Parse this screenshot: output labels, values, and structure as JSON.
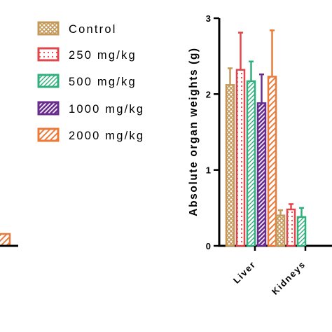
{
  "chart_data": {
    "type": "bar",
    "ylabel": "Absolute organ weights (g)",
    "ylim": [
      0,
      3
    ],
    "y_ticks": [
      0,
      1,
      2,
      3
    ],
    "y_tick_labels": [
      "0",
      "1",
      "2",
      "3"
    ],
    "categories": [
      "Liver",
      "Kidneys"
    ],
    "legend_placement": "top-left",
    "series": [
      {
        "name": "Control",
        "color": "#c4995a",
        "pattern": "crosshatch",
        "values": [
          2.12,
          0.4
        ],
        "errors": [
          0.22,
          0.07
        ]
      },
      {
        "name": "250 mg/kg",
        "color": "#e0474c",
        "pattern": "dots",
        "values": [
          2.32,
          0.48
        ],
        "errors": [
          0.49,
          0.07
        ]
      },
      {
        "name": "500 mg/kg",
        "color": "#2fb07c",
        "pattern": "diagonal-light",
        "values": [
          2.17,
          0.38
        ],
        "errors": [
          0.26,
          0.12
        ]
      },
      {
        "name": "1000 mg/kg",
        "color": "#6b2c8f",
        "pattern": "diagonal-dense",
        "values": [
          1.88,
          null
        ],
        "errors": [
          0.38,
          null
        ]
      },
      {
        "name": "2000 mg/kg",
        "color": "#ec7a3a",
        "pattern": "diagonal-wide",
        "values": [
          2.23,
          null
        ],
        "errors": [
          0.61,
          null
        ]
      }
    ],
    "left_panel_partial": {
      "color": "#ec7a3a",
      "value_visible": "clipped at left edge"
    }
  }
}
